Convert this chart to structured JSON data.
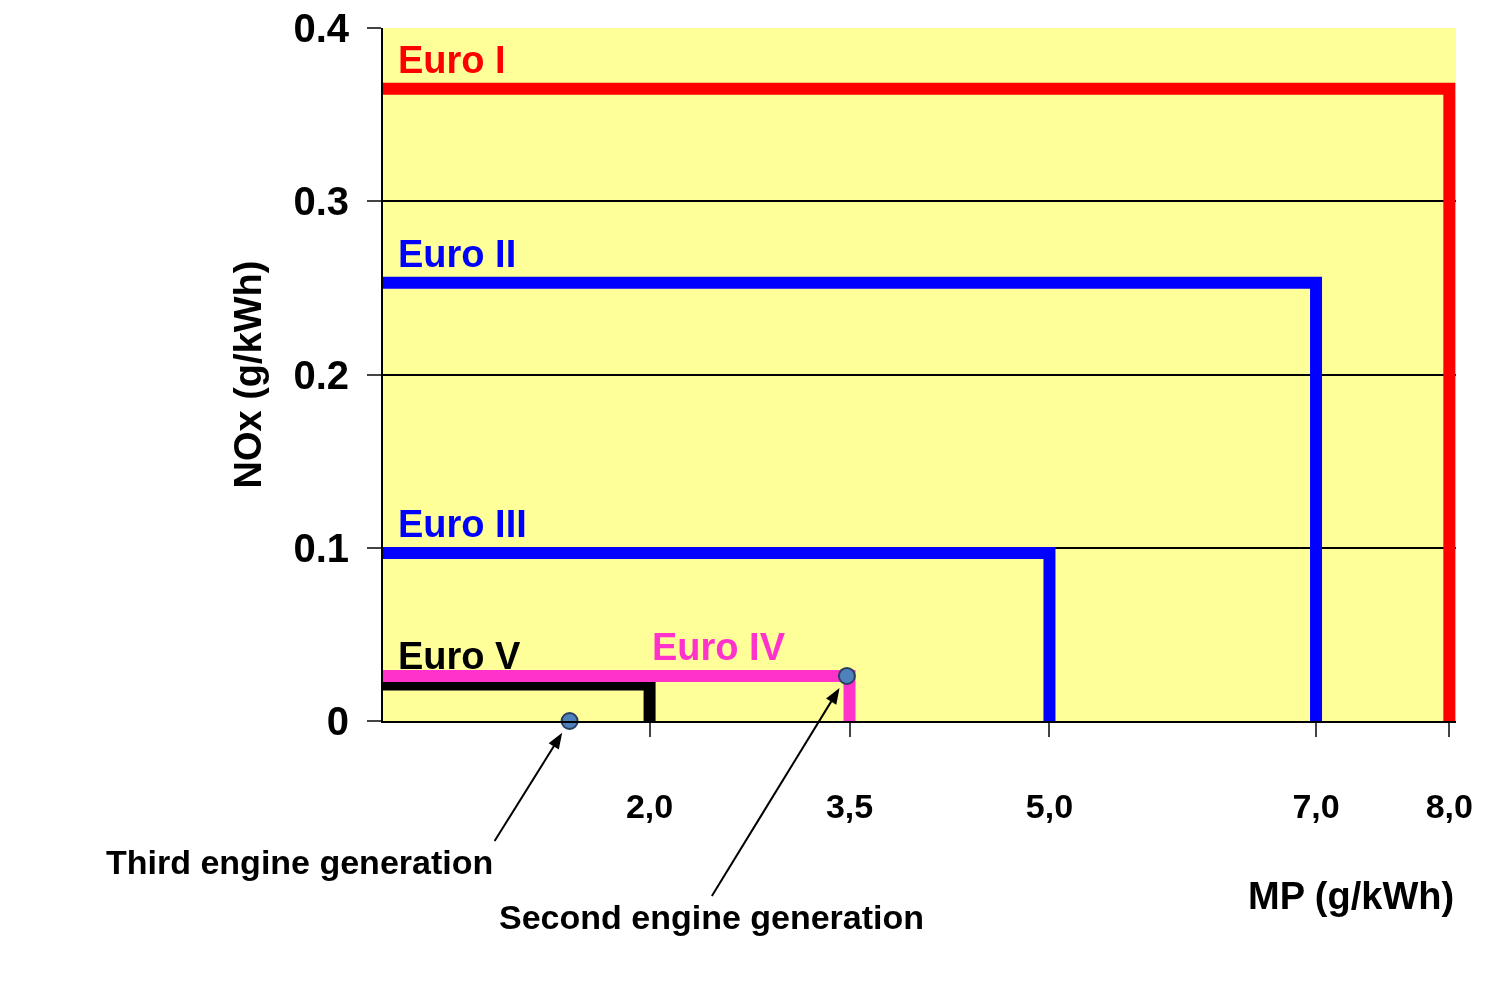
{
  "chart_data": {
    "type": "line",
    "xlabel": "MP (g/kWh)",
    "ylabel": "NOx (g/kWh)",
    "series": [
      {
        "name": "Euro I",
        "color": "#ff0000",
        "x": [
          0,
          8,
          8
        ],
        "values": [
          0.365,
          0.365,
          0
        ]
      },
      {
        "name": "Euro II",
        "color": "#0000ff",
        "x": [
          0,
          7,
          7
        ],
        "values": [
          0.253,
          0.253,
          0
        ]
      },
      {
        "name": "Euro III",
        "color": "#0000ff",
        "x": [
          0,
          5,
          5
        ],
        "values": [
          0.097,
          0.097,
          0
        ]
      },
      {
        "name": "Euro V",
        "color": "#000000",
        "x": [
          0,
          2,
          2
        ],
        "values": [
          0.021,
          0.021,
          0
        ]
      },
      {
        "name": "Euro IV",
        "color": "#ff33cc",
        "x": [
          0,
          3.5,
          3.5
        ],
        "values": [
          0.026,
          0.026,
          0
        ]
      },
      {
        "type": "scatter",
        "color": "#4f81bd",
        "x": [
          1.4,
          3.48
        ],
        "values": [
          0,
          0.026
        ]
      }
    ],
    "xlim": [
      0,
      8.05
    ],
    "ylim": [
      0,
      0.4
    ],
    "xticks": [
      {
        "value": 2,
        "label": "2,0"
      },
      {
        "value": 3.5,
        "label": "3,5"
      },
      {
        "value": 5,
        "label": "5,0"
      },
      {
        "value": 7,
        "label": "7,0"
      },
      {
        "value": 8,
        "label": "8,0"
      }
    ],
    "yticks": [
      0,
      0.1,
      0.2,
      0.3,
      0.4
    ],
    "grid": "y",
    "legend": false,
    "annotations": [
      "Third engine generation",
      "Second engine generation"
    ]
  }
}
